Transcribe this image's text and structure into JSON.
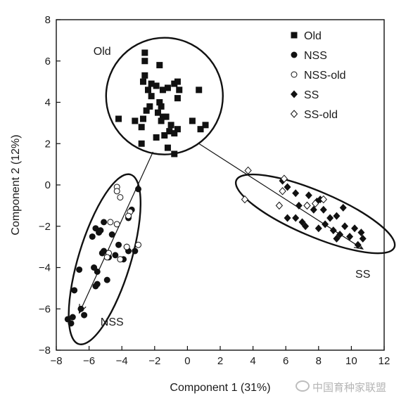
{
  "chart_data": {
    "type": "scatter",
    "title": "",
    "xlabel": "Component 1 (31%)",
    "ylabel": "Component 2 (12%)",
    "xlim": [
      -8,
      12
    ],
    "ylim": [
      -8,
      8
    ],
    "x_ticks": [
      -8,
      -6,
      -4,
      -2,
      0,
      2,
      4,
      6,
      8,
      10,
      12
    ],
    "y_ticks": [
      -8,
      -6,
      -4,
      -2,
      0,
      2,
      4,
      6,
      8
    ],
    "grid": false,
    "legend_position": "top-right",
    "legend": [
      {
        "label": "Old",
        "marker": "square-filled"
      },
      {
        "label": "NSS",
        "marker": "circle-filled"
      },
      {
        "label": "NSS-old",
        "marker": "circle-open"
      },
      {
        "label": "SS",
        "marker": "diamond-filled"
      },
      {
        "label": "SS-old",
        "marker": "diamond-open"
      }
    ],
    "series": [
      {
        "name": "Old",
        "marker": "square-filled",
        "points": [
          [
            -2.6,
            6.4
          ],
          [
            -2.6,
            6.0
          ],
          [
            -1.7,
            5.8
          ],
          [
            -2.6,
            5.3
          ],
          [
            -2.7,
            5.0
          ],
          [
            -2.2,
            4.9
          ],
          [
            -1.9,
            4.8
          ],
          [
            -2.4,
            4.6
          ],
          [
            -1.5,
            4.6
          ],
          [
            -1.2,
            4.7
          ],
          [
            -0.8,
            4.9
          ],
          [
            -0.6,
            5.0
          ],
          [
            -0.5,
            4.6
          ],
          [
            0.7,
            4.6
          ],
          [
            -2.2,
            4.3
          ],
          [
            -1.7,
            4.0
          ],
          [
            -0.6,
            4.2
          ],
          [
            -1.6,
            3.8
          ],
          [
            -2.3,
            3.8
          ],
          [
            -2.5,
            3.6
          ],
          [
            -1.8,
            3.5
          ],
          [
            -1.5,
            3.3
          ],
          [
            -1.3,
            3.3
          ],
          [
            -2.7,
            3.2
          ],
          [
            -4.2,
            3.2
          ],
          [
            -3.2,
            3.1
          ],
          [
            -1.6,
            3.1
          ],
          [
            0.3,
            3.1
          ],
          [
            -1.0,
            2.9
          ],
          [
            -2.8,
            2.8
          ],
          [
            -0.6,
            2.7
          ],
          [
            1.1,
            2.9
          ],
          [
            0.8,
            2.7
          ],
          [
            -1.1,
            2.6
          ],
          [
            -1.4,
            2.4
          ],
          [
            -1.9,
            2.3
          ],
          [
            -0.8,
            2.5
          ],
          [
            -2.8,
            2.0
          ],
          [
            -1.2,
            1.8
          ],
          [
            -0.8,
            1.5
          ]
        ]
      },
      {
        "name": "NSS",
        "marker": "circle-filled",
        "points": [
          [
            -3.0,
            -0.2
          ],
          [
            -3.4,
            -1.2
          ],
          [
            -3.6,
            -1.6
          ],
          [
            -5.1,
            -1.8
          ],
          [
            -5.6,
            -2.1
          ],
          [
            -5.4,
            -2.3
          ],
          [
            -5.3,
            -2.2
          ],
          [
            -5.8,
            -2.5
          ],
          [
            -4.6,
            -2.4
          ],
          [
            -4.2,
            -2.9
          ],
          [
            -3.7,
            -3.0
          ],
          [
            -5.1,
            -3.2
          ],
          [
            -5.2,
            -3.3
          ],
          [
            -3.6,
            -3.2
          ],
          [
            -3.2,
            -3.2
          ],
          [
            -4.4,
            -3.4
          ],
          [
            -4.8,
            -3.5
          ],
          [
            -3.9,
            -3.6
          ],
          [
            -5.7,
            -4.0
          ],
          [
            -6.6,
            -4.1
          ],
          [
            -5.5,
            -4.2
          ],
          [
            -4.9,
            -4.6
          ],
          [
            -5.5,
            -4.8
          ],
          [
            -5.6,
            -4.9
          ],
          [
            -6.9,
            -5.1
          ],
          [
            -6.5,
            -6.0
          ],
          [
            -6.3,
            -6.3
          ],
          [
            -7.0,
            -6.4
          ],
          [
            -7.3,
            -6.5
          ],
          [
            -7.1,
            -6.7
          ]
        ]
      },
      {
        "name": "NSS-old",
        "marker": "circle-open",
        "points": [
          [
            -4.3,
            -0.1
          ],
          [
            -4.3,
            -0.3
          ],
          [
            -4.1,
            -0.6
          ],
          [
            -3.5,
            -1.3
          ],
          [
            -3.6,
            -1.5
          ],
          [
            -4.7,
            -1.8
          ],
          [
            -4.3,
            -1.9
          ],
          [
            -3.0,
            -2.9
          ],
          [
            -3.7,
            -3.0
          ],
          [
            -4.8,
            -3.3
          ],
          [
            -4.9,
            -3.5
          ],
          [
            -4.1,
            -3.6
          ]
        ]
      },
      {
        "name": "SS",
        "marker": "diamond-filled",
        "points": [
          [
            5.8,
            0.2
          ],
          [
            6.1,
            -0.1
          ],
          [
            6.6,
            -0.4
          ],
          [
            7.4,
            -0.5
          ],
          [
            7.9,
            -0.8
          ],
          [
            8.1,
            -0.7
          ],
          [
            9.5,
            -1.1
          ],
          [
            6.8,
            -1.0
          ],
          [
            7.3,
            -1.0
          ],
          [
            7.7,
            -1.2
          ],
          [
            8.3,
            -1.2
          ],
          [
            9.1,
            -1.5
          ],
          [
            6.1,
            -1.6
          ],
          [
            6.6,
            -1.6
          ],
          [
            7.0,
            -1.8
          ],
          [
            7.2,
            -2.0
          ],
          [
            8.4,
            -1.9
          ],
          [
            8.7,
            -1.6
          ],
          [
            9.6,
            -2.0
          ],
          [
            10.2,
            -2.1
          ],
          [
            10.6,
            -2.3
          ],
          [
            9.9,
            -2.5
          ],
          [
            9.1,
            -2.6
          ],
          [
            10.4,
            -2.9
          ],
          [
            10.7,
            -2.6
          ],
          [
            8.9,
            -2.2
          ],
          [
            9.3,
            -2.4
          ],
          [
            8.0,
            -2.1
          ]
        ]
      },
      {
        "name": "SS-old",
        "marker": "diamond-open",
        "points": [
          [
            3.7,
            0.7
          ],
          [
            5.9,
            0.3
          ],
          [
            5.8,
            -0.3
          ],
          [
            8.3,
            -0.7
          ],
          [
            7.8,
            -0.9
          ],
          [
            7.3,
            -1.0
          ],
          [
            3.5,
            -0.7
          ],
          [
            5.6,
            -1.0
          ]
        ]
      }
    ],
    "annotations": [
      {
        "text": "Old",
        "x": -5.2,
        "y": 6.3
      },
      {
        "text": "NSS",
        "x": -4.6,
        "y": -6.8
      },
      {
        "text": "SS",
        "x": 10.7,
        "y": -4.5
      }
    ],
    "ellipses": [
      {
        "group": "Old",
        "center": [
          -1.4,
          4.3
        ],
        "rx": 7.0,
        "ry": 2.05,
        "rotation_deg": 0
      },
      {
        "group": "NSS",
        "center": [
          -5.05,
          -3.6
        ],
        "rx": 1.6,
        "ry": 4.4,
        "rotation_deg": -16
      },
      {
        "group": "SS",
        "center": [
          7.8,
          -1.4
        ],
        "rx": 4.2,
        "ry": 0.9,
        "rotation_deg": -23
      }
    ],
    "arrows": [
      {
        "from": [
          -2.1,
          1.6
        ],
        "to": [
          -6.6,
          -6.2
        ]
      },
      {
        "from": [
          0.7,
          2.0
        ],
        "to": [
          10.7,
          -3.1
        ]
      }
    ]
  },
  "watermark": {
    "text": "中国育种家联盟"
  }
}
